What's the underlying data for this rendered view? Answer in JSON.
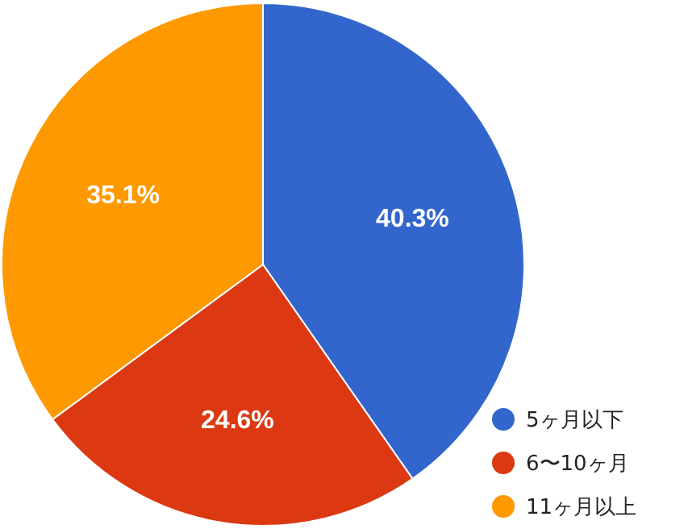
{
  "chart_data": {
    "type": "pie",
    "categories": [
      "5ヶ月以下",
      "6〜10ヶ月",
      "11ヶ月以上"
    ],
    "values": [
      40.3,
      24.6,
      35.1
    ],
    "colors": [
      "#3366cc",
      "#dc3912",
      "#ff9900"
    ],
    "value_labels": [
      "40.3%",
      "24.6%",
      "35.1%"
    ],
    "legend": "bottom right"
  }
}
